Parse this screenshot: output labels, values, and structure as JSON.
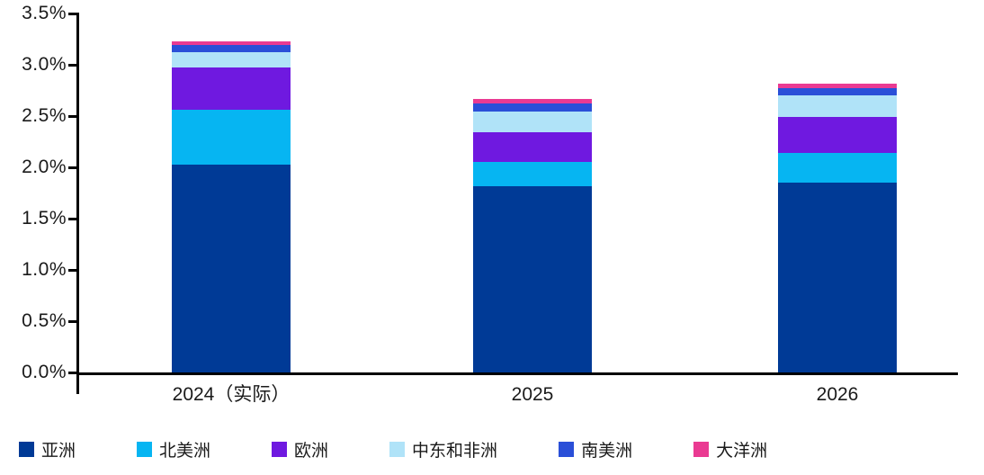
{
  "chart_data": {
    "type": "bar",
    "stacked": true,
    "title": "",
    "xlabel": "",
    "ylabel": "",
    "categories": [
      "2024（实际）",
      "2025",
      "2026"
    ],
    "series": [
      {
        "name": "亚洲",
        "color": "#003a96",
        "values": [
          2.03,
          1.82,
          1.85
        ]
      },
      {
        "name": "北美洲",
        "color": "#06b5f2",
        "values": [
          0.53,
          0.23,
          0.29
        ]
      },
      {
        "name": "欧洲",
        "color": "#6f19e0",
        "values": [
          0.41,
          0.29,
          0.35
        ]
      },
      {
        "name": "中东和非洲",
        "color": "#b0e3f8",
        "values": [
          0.15,
          0.2,
          0.21
        ]
      },
      {
        "name": "南美洲",
        "color": "#2a4fd8",
        "values": [
          0.07,
          0.08,
          0.07
        ]
      },
      {
        "name": "大洋洲",
        "color": "#ea3a92",
        "values": [
          0.04,
          0.05,
          0.05
        ]
      }
    ],
    "totals": [
      3.23,
      2.67,
      2.82
    ],
    "ylim": [
      0,
      3.5
    ],
    "ytick_values": [
      0,
      0.5,
      1.0,
      1.5,
      2.0,
      2.5,
      3.0,
      3.5
    ],
    "ytick_labels": [
      "0.0%",
      "0.5%",
      "1.0%",
      "1.5%",
      "2.0%",
      "2.5%",
      "3.0%",
      "3.5%"
    ],
    "grid": false,
    "legend_position": "bottom",
    "axis_color": "#000000",
    "text_color": "#1a1a1a",
    "background": "#ffffff"
  }
}
